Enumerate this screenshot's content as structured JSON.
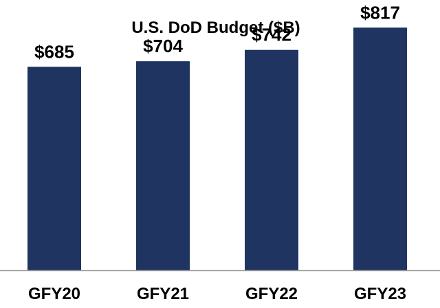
{
  "chart_data": {
    "type": "bar",
    "title": "U.S. DoD Budget ($B)",
    "categories": [
      "GFY20",
      "GFY21",
      "GFY22",
      "GFY23"
    ],
    "values": [
      685,
      704,
      742,
      817
    ],
    "value_labels": [
      "$685",
      "$704",
      "$742",
      "$817"
    ],
    "xlabel": "",
    "ylabel": "",
    "ylim": [
      0,
      910
    ],
    "grid": false,
    "legend": "none",
    "colors": {
      "bar": "#1f3460",
      "axis": "#9a9a9a",
      "text": "#000000"
    }
  }
}
